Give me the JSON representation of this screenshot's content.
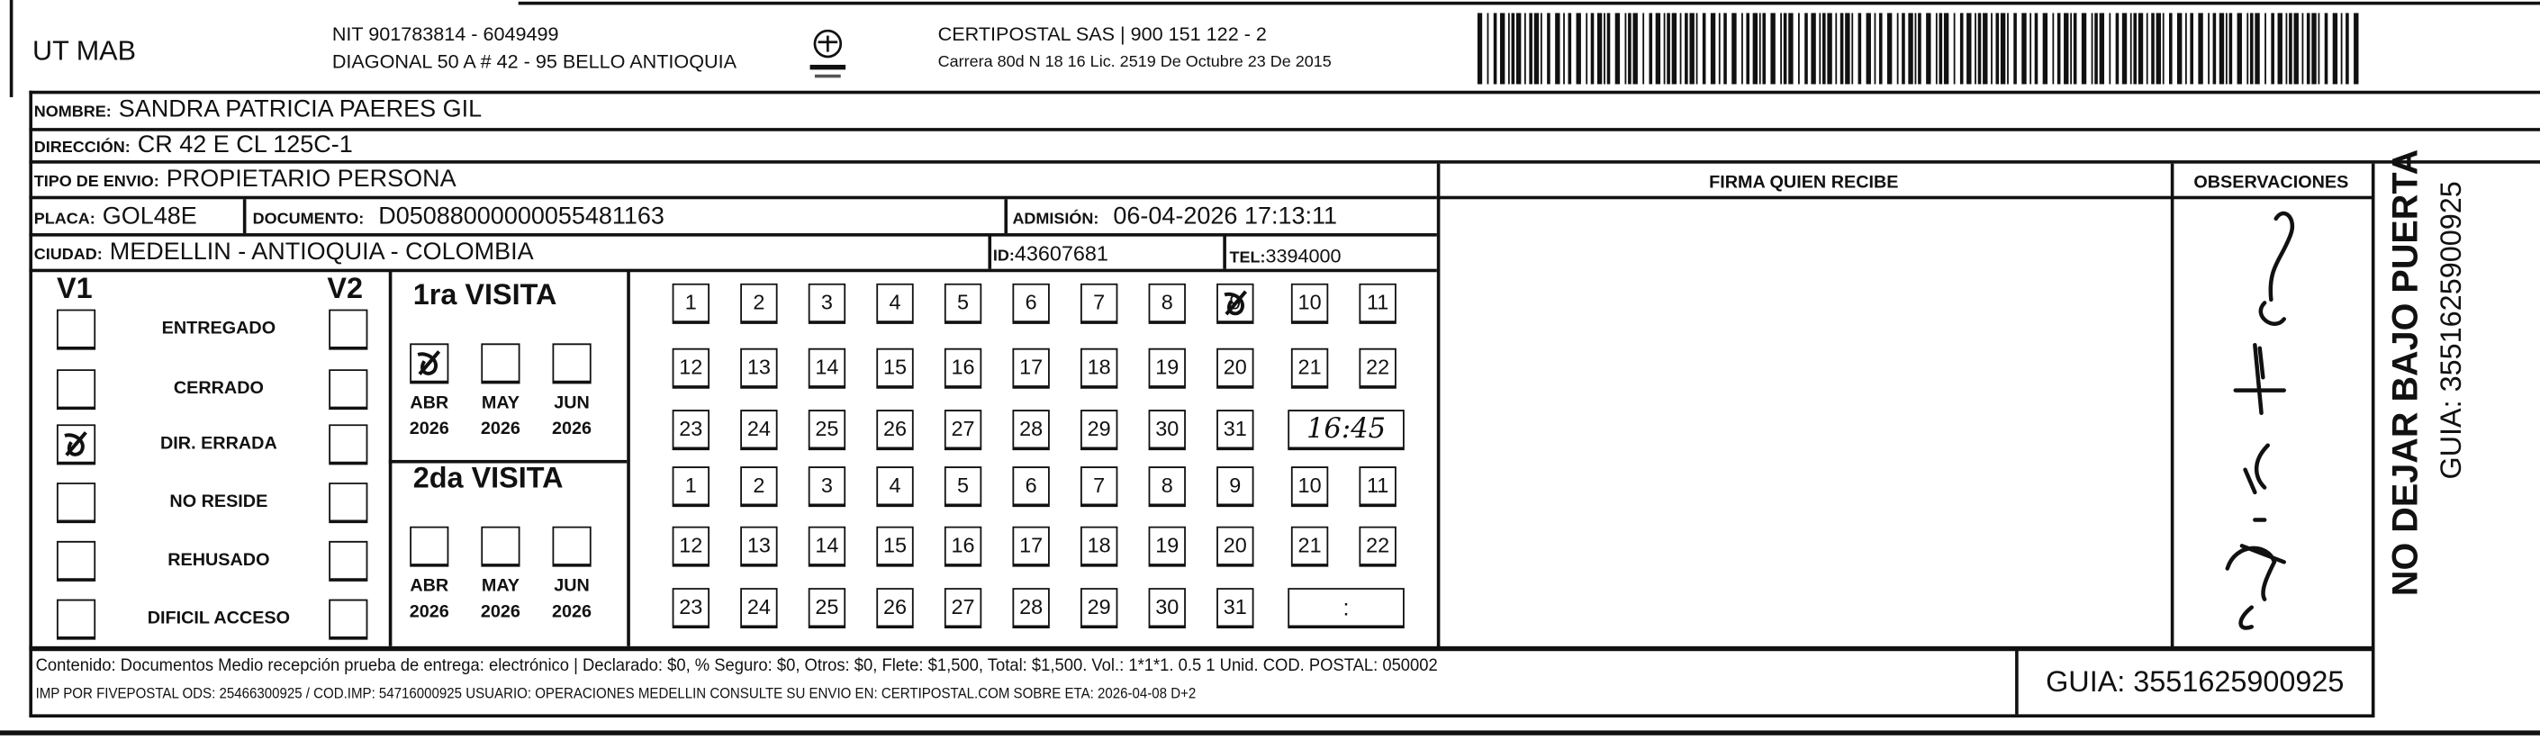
{
  "header": {
    "company": "UT MAB",
    "nit": "NIT 901783814 - 6049499",
    "address": "DIAGONAL 50 A # 42 - 95  BELLO  ANTIOQUIA",
    "carrier": "CERTIPOSTAL SAS | 900 151 122 - 2",
    "license": "Carrera 80d N 18 16  Lic. 2519 De Octubre 23 De 2015",
    "logo_icon": "certipostal-logo-icon",
    "barcode_icon": "barcode-icon"
  },
  "recipient": {
    "name_label": "NOMBRE:",
    "name": "SANDRA PATRICIA PAERES GIL",
    "address_label": "DIRECCIÓN:",
    "address": "CR 42 E CL 125C-1",
    "type_label": "TIPO DE ENVIO:",
    "type": "PROPIETARIO PERSONA",
    "plate_label": "PLACA:",
    "plate": "GOL48E",
    "document_label": "DOCUMENTO:",
    "document": "D05088000000055481163",
    "admission_label": "ADMISIÓN:",
    "admission": "06-04-2026 17:13:11",
    "city_label": "CIUDAD:",
    "city": "MEDELLIN - ANTIOQUIA - COLOMBIA",
    "id_label": "ID:",
    "id": "43607681",
    "tel_label": "TEL:",
    "tel": "3394000"
  },
  "status": {
    "v1_label": "V1",
    "v2_label": "V2",
    "items": [
      {
        "label": "ENTREGADO",
        "v1": false,
        "v2": false
      },
      {
        "label": "CERRADO",
        "v1": false,
        "v2": false
      },
      {
        "label": "DIR. ERRADA",
        "v1": true,
        "v2": false
      },
      {
        "label": "NO RESIDE",
        "v1": false,
        "v2": false
      },
      {
        "label": "REHUSADO",
        "v1": false,
        "v2": false
      },
      {
        "label": "DIFICIL ACCESO",
        "v1": false,
        "v2": false
      }
    ]
  },
  "visits": [
    {
      "title": "1ra VISITA",
      "months": [
        {
          "m": "ABR",
          "y": "2026",
          "checked": true
        },
        {
          "m": "MAY",
          "y": "2026",
          "checked": false
        },
        {
          "m": "JUN",
          "y": "2026",
          "checked": false
        }
      ],
      "days": [
        "1",
        "2",
        "3",
        "4",
        "5",
        "6",
        "7",
        "8",
        "9",
        "10",
        "11",
        "12",
        "13",
        "14",
        "15",
        "16",
        "17",
        "18",
        "19",
        "20",
        "21",
        "22",
        "23",
        "24",
        "25",
        "26",
        "27",
        "28",
        "29",
        "30",
        "31"
      ],
      "marked_day": "9",
      "time": "16:45"
    },
    {
      "title": "2da VISITA",
      "months": [
        {
          "m": "ABR",
          "y": "2026",
          "checked": false
        },
        {
          "m": "MAY",
          "y": "2026",
          "checked": false
        },
        {
          "m": "JUN",
          "y": "2026",
          "checked": false
        }
      ],
      "days": [
        "1",
        "2",
        "3",
        "4",
        "5",
        "6",
        "7",
        "8",
        "9",
        "10",
        "11",
        "12",
        "13",
        "14",
        "15",
        "16",
        "17",
        "18",
        "19",
        "20",
        "21",
        "22",
        "23",
        "24",
        "25",
        "26",
        "27",
        "28",
        "29",
        "30",
        "31"
      ],
      "marked_day": null,
      "time": ":"
    }
  ],
  "signature_header": "FIRMA QUIEN RECIBE",
  "observations_header": "OBSERVACIONES",
  "side": {
    "warning": "NO DEJAR BAJO PUERTA",
    "guia": "GUIA: 3551625900925"
  },
  "footer": {
    "line1": "Contenido: Documentos Medio recepción prueba de entrega: electrónico | Declarado: $0, % Seguro: $0, Otros: $0, Flete: $1,500, Total: $1,500. Vol.: 1*1*1. 0.5  1 Unid. COD. POSTAL: 050002",
    "line2": "IMP POR FIVEPOSTAL ODS: 25466300925 / COD.IMP: 54716000925 USUARIO: OPERACIONES MEDELLIN CONSULTE SU ENVIO EN: CERTIPOSTAL.COM SOBRE ETA: 2026-04-08 D+2",
    "guia": "GUIA: 3551625900925"
  }
}
